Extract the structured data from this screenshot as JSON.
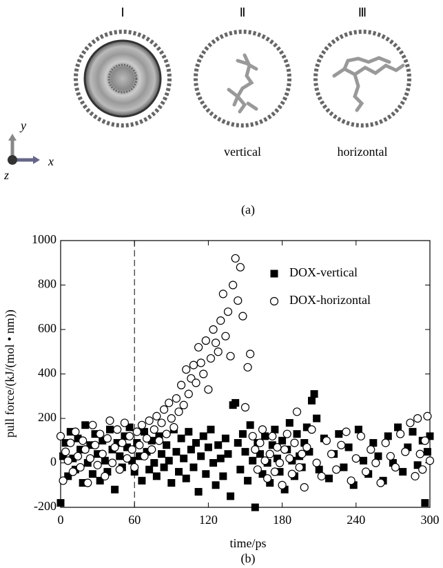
{
  "panel_a": {
    "labels": [
      "Ⅰ",
      "Ⅱ",
      "Ⅲ"
    ],
    "captions": [
      "vertical",
      "horizontal"
    ],
    "axis_labels": {
      "y": "y",
      "x": "x",
      "z": "z"
    },
    "tag": "(a)"
  },
  "panel_b_tag": "(b)",
  "chart_data": {
    "type": "scatter",
    "xlabel": "time/ps",
    "ylabel": "pull force/(kJ/(mol • nm))",
    "xlim": [
      0,
      300
    ],
    "ylim": [
      -200,
      1000
    ],
    "xticks": [
      0,
      60,
      120,
      180,
      240,
      300
    ],
    "yticks": [
      -200,
      0,
      200,
      400,
      600,
      800,
      1000
    ],
    "dashed_line_x": 60,
    "legend": "upper right",
    "series": [
      {
        "name": "DOX-vertical",
        "marker": "square",
        "color": "#000000",
        "x": [
          0,
          2,
          4,
          6,
          8,
          10,
          12,
          14,
          16,
          18,
          20,
          22,
          24,
          26,
          28,
          30,
          32,
          34,
          36,
          38,
          40,
          42,
          44,
          46,
          48,
          50,
          52,
          54,
          56,
          58,
          60,
          62,
          64,
          66,
          68,
          70,
          72,
          74,
          76,
          78,
          80,
          82,
          84,
          86,
          88,
          90,
          92,
          94,
          96,
          98,
          100,
          102,
          104,
          106,
          108,
          110,
          112,
          114,
          116,
          118,
          120,
          122,
          124,
          126,
          128,
          130,
          132,
          134,
          136,
          138,
          140,
          142,
          144,
          146,
          148,
          150,
          152,
          154,
          156,
          158,
          160,
          162,
          164,
          166,
          168,
          170,
          172,
          174,
          176,
          178,
          180,
          182,
          184,
          186,
          188,
          190,
          192,
          194,
          196,
          198,
          200,
          202,
          204,
          206,
          208,
          210,
          214,
          218,
          222,
          226,
          230,
          234,
          238,
          242,
          246,
          250,
          254,
          258,
          262,
          266,
          270,
          274,
          278,
          282,
          286,
          290,
          294,
          296,
          298,
          300
        ],
        "values": [
          -180,
          30,
          90,
          -60,
          140,
          20,
          -30,
          110,
          60,
          -90,
          170,
          0,
          80,
          -50,
          130,
          40,
          -80,
          100,
          10,
          -40,
          150,
          60,
          -120,
          90,
          30,
          -20,
          120,
          70,
          160,
          10,
          -40,
          90,
          30,
          -80,
          140,
          50,
          -30,
          100,
          0,
          -60,
          120,
          40,
          -20,
          80,
          10,
          -90,
          150,
          50,
          -40,
          110,
          20,
          -70,
          140,
          60,
          -20,
          90,
          -130,
          30,
          120,
          -50,
          70,
          150,
          0,
          -100,
          80,
          20,
          -60,
          110,
          40,
          -150,
          260,
          270,
          90,
          -30,
          130,
          50,
          -80,
          170,
          10,
          -200,
          90,
          40,
          -50,
          120,
          0,
          -90,
          80,
          150,
          20,
          -40,
          100,
          -120,
          60,
          180,
          10,
          -60,
          130,
          30,
          -20,
          90,
          160,
          50,
          280,
          310,
          200,
          -30,
          110,
          -70,
          40,
          130,
          -20,
          70,
          -100,
          150,
          10,
          -50,
          90,
          30,
          -80,
          120,
          0,
          160,
          -40,
          70,
          140,
          -10,
          100,
          -180,
          50,
          120
        ]
      },
      {
        "name": "DOX-horizontal",
        "marker": "circle",
        "color": "#000000",
        "x": [
          0,
          2,
          4,
          6,
          8,
          10,
          12,
          14,
          16,
          18,
          20,
          22,
          24,
          26,
          28,
          30,
          32,
          34,
          36,
          38,
          40,
          42,
          44,
          46,
          48,
          50,
          52,
          54,
          56,
          58,
          60,
          62,
          64,
          66,
          68,
          70,
          72,
          74,
          76,
          78,
          80,
          82,
          84,
          86,
          88,
          90,
          92,
          94,
          96,
          98,
          100,
          102,
          104,
          106,
          108,
          110,
          112,
          114,
          116,
          118,
          120,
          122,
          124,
          126,
          128,
          130,
          132,
          134,
          136,
          138,
          140,
          142,
          144,
          146,
          148,
          150,
          152,
          154,
          156,
          158,
          160,
          162,
          164,
          166,
          168,
          170,
          172,
          174,
          176,
          178,
          180,
          182,
          184,
          186,
          188,
          190,
          192,
          194,
          196,
          198,
          200,
          204,
          208,
          212,
          216,
          220,
          224,
          228,
          232,
          236,
          240,
          244,
          248,
          252,
          256,
          260,
          264,
          268,
          272,
          276,
          280,
          284,
          288,
          290,
          292,
          294,
          296,
          298,
          300
        ],
        "values": [
          120,
          -80,
          50,
          10,
          90,
          -40,
          140,
          30,
          -20,
          100,
          60,
          -90,
          20,
          170,
          80,
          -10,
          130,
          40,
          -60,
          110,
          190,
          0,
          70,
          150,
          -30,
          90,
          180,
          20,
          120,
          60,
          -20,
          140,
          80,
          170,
          30,
          110,
          190,
          60,
          150,
          210,
          100,
          180,
          240,
          130,
          270,
          200,
          160,
          290,
          230,
          350,
          260,
          420,
          310,
          380,
          440,
          360,
          520,
          450,
          400,
          550,
          330,
          470,
          600,
          540,
          500,
          640,
          760,
          570,
          680,
          480,
          800,
          920,
          730,
          880,
          660,
          250,
          430,
          490,
          120,
          60,
          -30,
          90,
          150,
          10,
          -70,
          40,
          120,
          -40,
          70,
          0,
          -100,
          60,
          130,
          20,
          -50,
          90,
          230,
          -20,
          40,
          -110,
          70,
          150,
          0,
          -60,
          100,
          40,
          -30,
          80,
          140,
          -80,
          20,
          120,
          -40,
          60,
          0,
          -90,
          90,
          30,
          -20,
          130,
          50,
          180,
          -60,
          200,
          40,
          -30,
          100,
          210,
          10
        ]
      }
    ]
  }
}
